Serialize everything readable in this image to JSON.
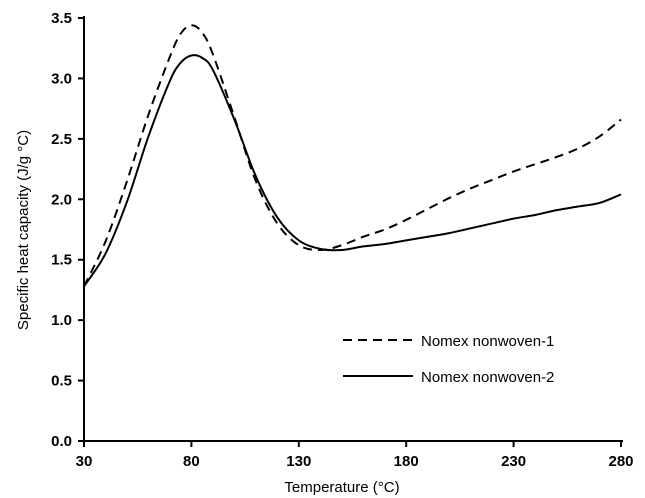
{
  "chart_data": {
    "type": "line",
    "title": "",
    "xlabel": "Temperature (°C)",
    "ylabel": "Specific heat capacity (J/g °C)",
    "xlim": [
      30,
      280
    ],
    "ylim": [
      0,
      3.5
    ],
    "xticks": [
      "30",
      "80",
      "130",
      "180",
      "230",
      "280"
    ],
    "yticks": [
      "0.0",
      "0.5",
      "1.0",
      "1.5",
      "2.0",
      "2.5",
      "3.0",
      "3.5"
    ],
    "grid": false,
    "legend_position": "lower-right",
    "series": [
      {
        "name": "Nomex nonwoven-1",
        "style": "dashed",
        "color": "#000000",
        "x": [
          30,
          40,
          50,
          60,
          70,
          75,
          80,
          85,
          90,
          100,
          110,
          120,
          130,
          140,
          150,
          160,
          170,
          180,
          190,
          200,
          210,
          220,
          230,
          240,
          250,
          260,
          270,
          280
        ],
        "y": [
          1.28,
          1.65,
          2.15,
          2.7,
          3.18,
          3.37,
          3.44,
          3.38,
          3.2,
          2.68,
          2.15,
          1.8,
          1.62,
          1.58,
          1.62,
          1.69,
          1.75,
          1.83,
          1.92,
          2.01,
          2.09,
          2.16,
          2.23,
          2.29,
          2.35,
          2.42,
          2.52,
          2.66
        ]
      },
      {
        "name": "Nomex nonwoven-2",
        "style": "solid",
        "color": "#000000",
        "x": [
          30,
          40,
          50,
          60,
          70,
          75,
          80,
          85,
          90,
          100,
          110,
          120,
          130,
          140,
          150,
          160,
          170,
          180,
          190,
          200,
          210,
          220,
          230,
          240,
          250,
          260,
          270,
          280
        ],
        "y": [
          1.28,
          1.55,
          1.98,
          2.52,
          2.98,
          3.13,
          3.19,
          3.17,
          3.07,
          2.66,
          2.19,
          1.85,
          1.66,
          1.59,
          1.58,
          1.61,
          1.63,
          1.66,
          1.69,
          1.72,
          1.76,
          1.8,
          1.84,
          1.87,
          1.91,
          1.94,
          1.97,
          2.04
        ]
      }
    ]
  }
}
